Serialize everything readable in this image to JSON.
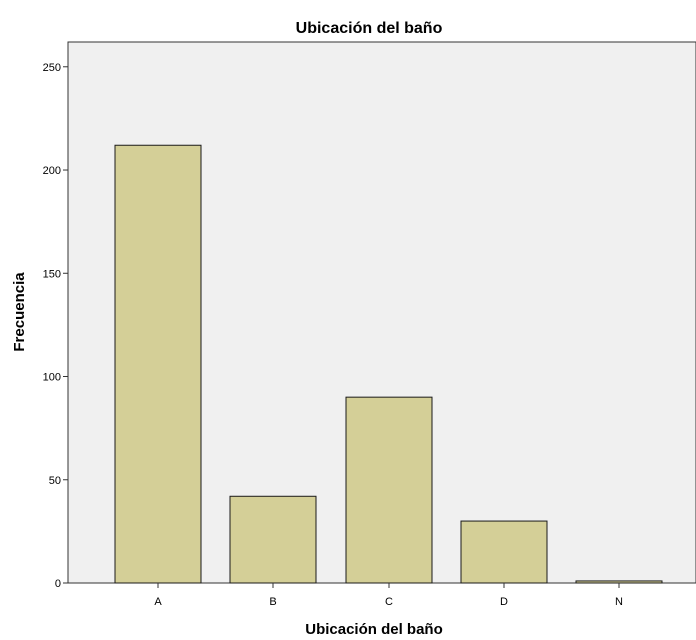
{
  "chart_data": {
    "type": "bar",
    "title": "Ubicación del baño",
    "xlabel": "Ubicación del baño",
    "ylabel": "Frecuencia",
    "categories": [
      "A",
      "B",
      "C",
      "D",
      "N"
    ],
    "values": [
      212,
      42,
      90,
      30,
      1
    ],
    "ylim": [
      0,
      262
    ],
    "yticks": [
      0,
      50,
      100,
      150,
      200,
      250
    ],
    "grid": false,
    "legend": "none",
    "colors": {
      "plot_background": "#f0f0f0",
      "bar_fill": "#d4cf97",
      "bar_stroke": "#1a1a1a",
      "axis": "#333333"
    }
  }
}
